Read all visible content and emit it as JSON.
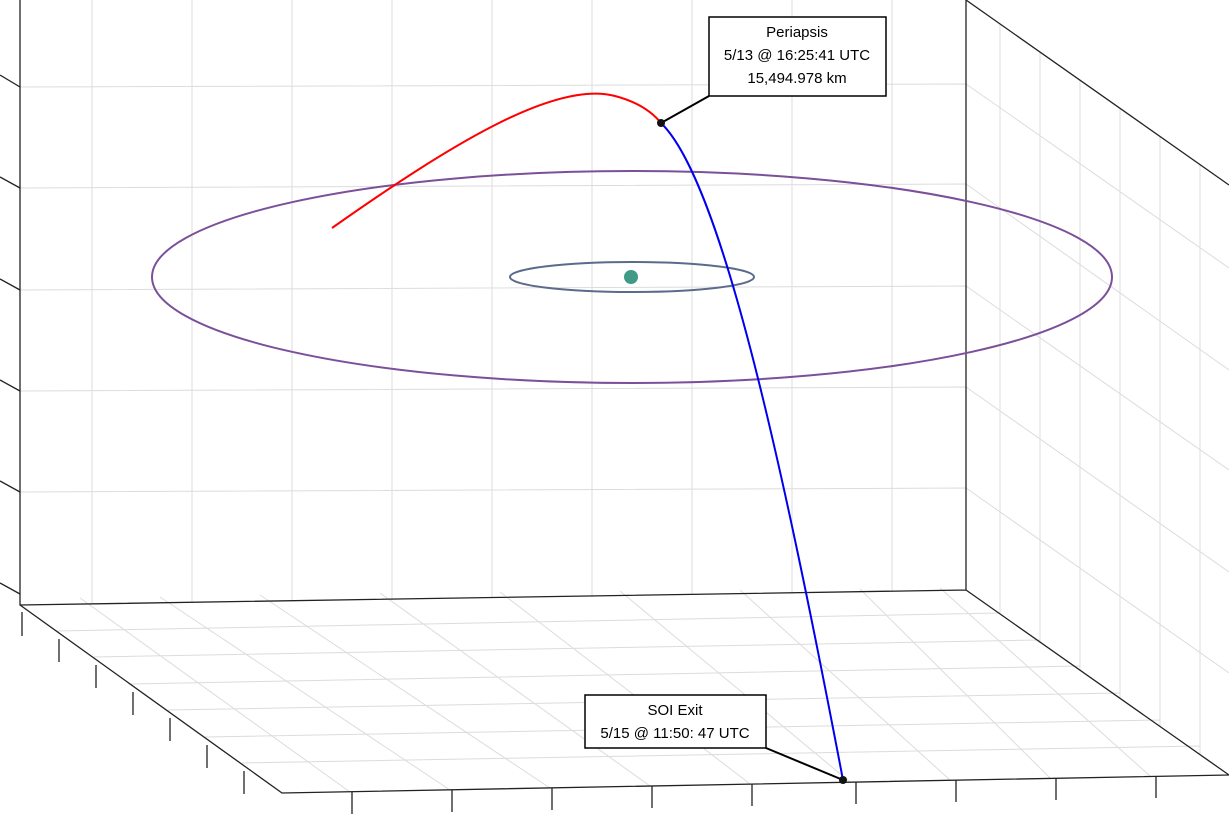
{
  "annotations": [
    {
      "lines": [
        "Periapsis",
        "5/13 @ 16:25:41 UTC",
        "15,494.978 km"
      ]
    },
    {
      "lines": [
        "SOI Exit",
        "5/15 @ 11:50: 47 UTC"
      ]
    }
  ]
}
